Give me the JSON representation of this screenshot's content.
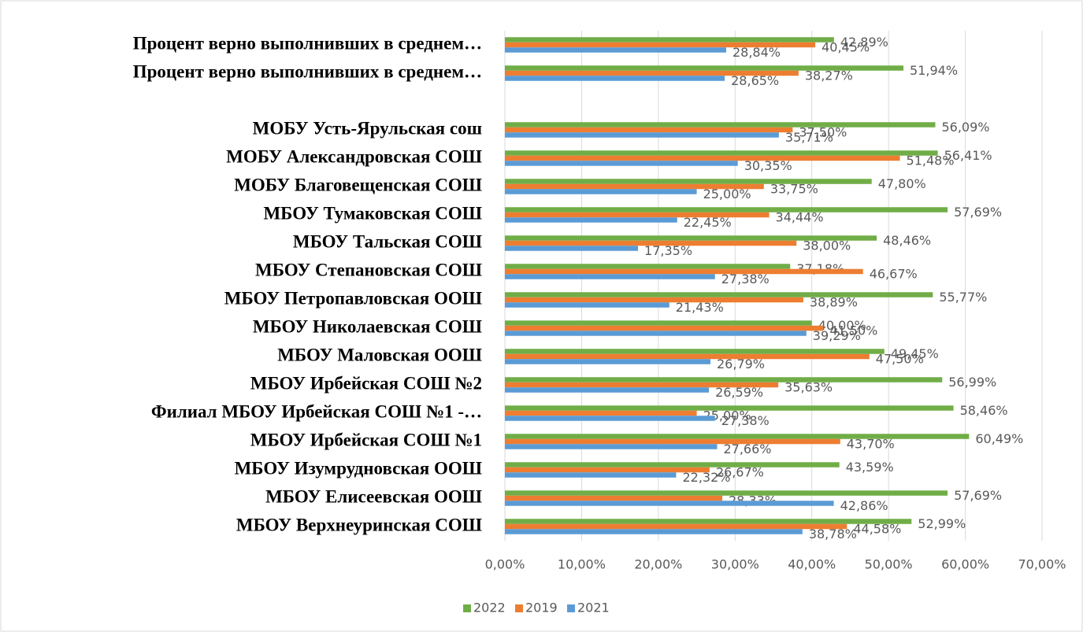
{
  "chart_data": {
    "type": "bar",
    "orientation": "horizontal",
    "categories": [
      "Процент верно выполнивших в среднем…",
      "Процент верно выполнивших в среднем…",
      null,
      "МОБУ Усть-Ярульская сош",
      "МОБУ Александровская СОШ",
      "МОБУ  Благовещенская СОШ",
      "МБОУ Тумаковская СОШ",
      "МБОУ Тальская СОШ",
      "МБОУ Степановская СОШ",
      "МБОУ Петропавловская ООШ",
      "МБОУ Николаевская СОШ",
      "МБОУ Маловская ООШ",
      "МБОУ Ирбейская СОШ №2",
      "Филиал МБОУ Ирбейская СОШ №1 -…",
      "МБОУ Ирбейская СОШ №1",
      "МБОУ Изумрудновская ООШ",
      "МБОУ Елисеевская ООШ",
      "МБОУ Верхнеуринская СОШ"
    ],
    "series": [
      {
        "name": "2022",
        "color": "#70ad47",
        "values": [
          42.89,
          51.94,
          null,
          56.09,
          56.41,
          47.8,
          57.69,
          48.46,
          37.18,
          55.77,
          40.0,
          49.45,
          56.99,
          58.46,
          60.49,
          43.59,
          57.69,
          52.99
        ],
        "value_labels": [
          "42,89%",
          "51,94%",
          null,
          "56,09%",
          "56,41%",
          "47,80%",
          "57,69%",
          "48,46%",
          "37,18%",
          "55,77%",
          "40,00%",
          "49,45%",
          "56,99%",
          "58,46%",
          "60,49%",
          "43,59%",
          "57,69%",
          "52,99%"
        ]
      },
      {
        "name": "2019",
        "color": "#ed7d31",
        "values": [
          40.45,
          38.27,
          null,
          37.5,
          51.48,
          33.75,
          34.44,
          38.0,
          46.67,
          38.89,
          41.5,
          47.5,
          35.63,
          25.0,
          43.7,
          26.67,
          28.33,
          44.58
        ],
        "value_labels": [
          "40,45%",
          "38,27%",
          null,
          "37,50%",
          "51,48%",
          "33,75%",
          "34,44%",
          "38,00%",
          "46,67%",
          "38,89%",
          "41,50%",
          "47,50%",
          "35,63%",
          "25,00%",
          "43,70%",
          "26,67%",
          "28,33%",
          "44,58%"
        ]
      },
      {
        "name": "2021",
        "color": "#5b9bd5",
        "values": [
          28.84,
          28.65,
          null,
          35.71,
          30.35,
          25.0,
          22.45,
          17.35,
          27.38,
          21.43,
          39.29,
          26.79,
          26.59,
          27.38,
          27.66,
          22.32,
          42.86,
          38.78
        ],
        "value_labels": [
          "28,84%",
          "28,65%",
          null,
          "35,71%",
          "30,35%",
          "25,00%",
          "22,45%",
          "17,35%",
          "27,38%",
          "21,43%",
          "39,29%",
          "26,79%",
          "26,59%",
          "27,38%",
          "27,66%",
          "22,32%",
          "42,86%",
          "38,78%"
        ]
      }
    ],
    "xlim": [
      0,
      70
    ],
    "xticks": [
      {
        "value": 0,
        "label": "0,00%"
      },
      {
        "value": 10,
        "label": "10,00%"
      },
      {
        "value": 20,
        "label": "20,00%"
      },
      {
        "value": 30,
        "label": "30,00%"
      },
      {
        "value": 40,
        "label": "40,00%"
      },
      {
        "value": 50,
        "label": "50,00%"
      },
      {
        "value": 60,
        "label": "60,00%"
      },
      {
        "value": 70,
        "label": "70,00%"
      }
    ],
    "grid": true,
    "legend": "bottom"
  }
}
